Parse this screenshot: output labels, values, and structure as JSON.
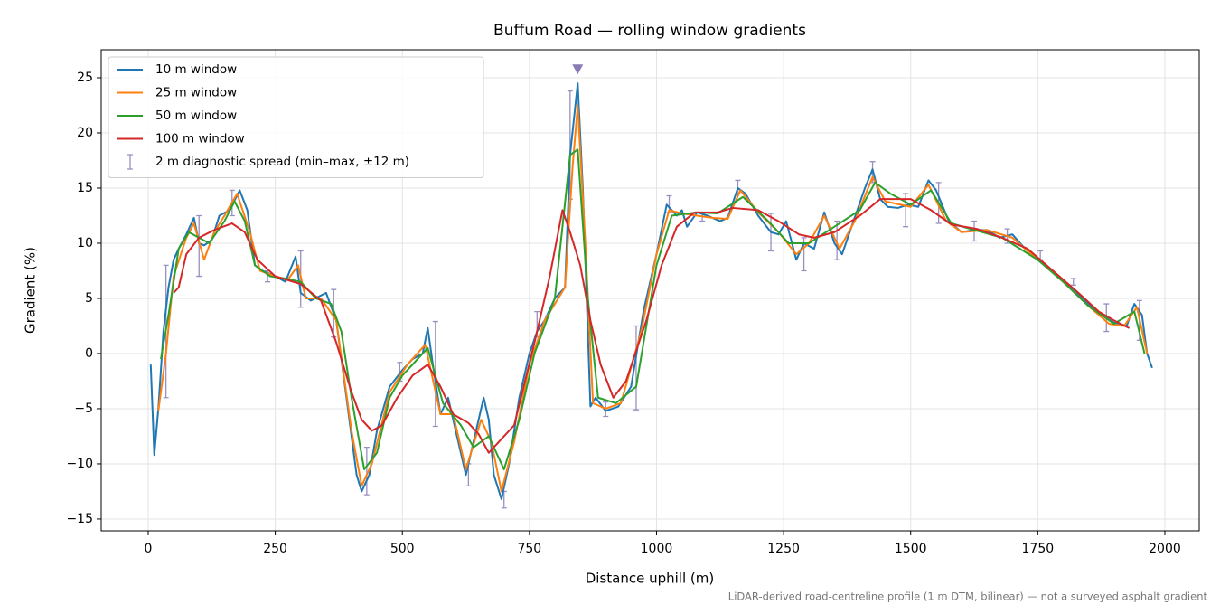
{
  "chart_data": {
    "type": "line",
    "title": "Buffum Road — rolling window gradients",
    "x_label": "Distance uphill (m)",
    "y_label": "Gradient (%)",
    "footnote": "LiDAR-derived road-centreline profile (1 m DTM, bilinear) — not a surveyed asphalt gradient",
    "xlim": [
      -92.4,
      2067.6
    ],
    "ylim": [
      -16.07,
      27.54
    ],
    "xticks": [
      0,
      250,
      500,
      750,
      1000,
      1250,
      1500,
      1750,
      2000
    ],
    "yticks": [
      {
        "value": -15,
        "label": "−15"
      },
      {
        "value": -10,
        "label": "−10"
      },
      {
        "value": -5,
        "label": "−5"
      },
      0,
      5,
      10,
      15,
      20,
      25
    ],
    "grid": true,
    "legend": "upper-left",
    "series": [
      {
        "name": "10 m window",
        "color": "#1f77b4",
        "x": [
          5,
          12,
          20,
          30,
          40,
          50,
          60,
          75,
          90,
          100,
          110,
          125,
          140,
          160,
          180,
          195,
          210,
          225,
          250,
          270,
          290,
          300,
          320,
          350,
          370,
          390,
          410,
          420,
          435,
          450,
          475,
          500,
          520,
          540,
          550,
          560,
          575,
          590,
          610,
          625,
          640,
          660,
          670,
          680,
          695,
          710,
          730,
          750,
          765,
          780,
          800,
          820,
          830,
          845,
          855,
          870,
          880,
          900,
          925,
          950,
          975,
          1000,
          1020,
          1040,
          1050,
          1060,
          1080,
          1100,
          1125,
          1140,
          1160,
          1175,
          1200,
          1225,
          1240,
          1255,
          1275,
          1290,
          1310,
          1330,
          1350,
          1365,
          1380,
          1410,
          1425,
          1440,
          1455,
          1475,
          1495,
          1515,
          1535,
          1550,
          1575,
          1600,
          1625,
          1650,
          1675,
          1700,
          1725,
          1750,
          1775,
          1800,
          1825,
          1850,
          1875,
          1900,
          1925,
          1940,
          1955,
          1965,
          1975
        ],
        "y": [
          -1,
          -9.2,
          -5,
          2,
          6,
          8.5,
          9.5,
          10.8,
          12.3,
          10,
          9.8,
          10.3,
          12.5,
          13,
          14.8,
          13,
          8,
          7.5,
          7,
          6.5,
          8.8,
          5.5,
          4.8,
          5.5,
          3,
          -4,
          -11,
          -12.5,
          -11,
          -7,
          -3,
          -1.5,
          -0.5,
          0,
          2.3,
          -1,
          -5.5,
          -4,
          -8,
          -11,
          -8,
          -4,
          -6,
          -11,
          -13.2,
          -10,
          -4,
          0,
          2,
          3,
          5,
          6,
          18,
          24.5,
          15,
          -4.8,
          -4,
          -5.2,
          -4.8,
          -3,
          4,
          9,
          13.5,
          12.5,
          13,
          11.5,
          12.8,
          12.5,
          12,
          12.3,
          15,
          14.5,
          12.5,
          11,
          10.8,
          12,
          8.5,
          10,
          9.5,
          12.8,
          10,
          9,
          11,
          15,
          16.7,
          14,
          13.3,
          13.2,
          13.5,
          13.3,
          15.7,
          14.8,
          12,
          11,
          11.2,
          11.2,
          10.5,
          10.8,
          9.5,
          8.5,
          7.5,
          6.5,
          5.5,
          4.5,
          3.5,
          2.8,
          2.5,
          4.5,
          3.5,
          0,
          -1.3
        ]
      },
      {
        "name": "25 m window",
        "color": "#ff7f0e",
        "x": [
          20,
          35,
          50,
          75,
          90,
          110,
          130,
          150,
          175,
          200,
          220,
          250,
          275,
          295,
          310,
          340,
          370,
          400,
          420,
          440,
          475,
          510,
          545,
          575,
          600,
          625,
          655,
          675,
          695,
          720,
          750,
          780,
          820,
          835,
          845,
          860,
          875,
          900,
          930,
          970,
          1000,
          1025,
          1050,
          1080,
          1110,
          1140,
          1165,
          1200,
          1240,
          1275,
          1300,
          1330,
          1360,
          1390,
          1425,
          1450,
          1500,
          1535,
          1570,
          1600,
          1650,
          1700,
          1750,
          1800,
          1850,
          1890,
          1920,
          1945,
          1965
        ],
        "y": [
          -5.2,
          0,
          7,
          10.5,
          11.8,
          8.5,
          11,
          12.5,
          14.5,
          11,
          7.5,
          7,
          6.7,
          8,
          5,
          5,
          3,
          -7,
          -12,
          -10,
          -3.5,
          -1,
          0.8,
          -5.5,
          -5.5,
          -10.5,
          -6,
          -8,
          -12.5,
          -8,
          -1,
          3,
          6,
          17,
          22.5,
          10,
          -4.5,
          -5,
          -4.5,
          2,
          9,
          13,
          12.7,
          12.5,
          12.3,
          12.2,
          14.8,
          12.8,
          11,
          9,
          10,
          12.5,
          9.5,
          12,
          16,
          13.8,
          13.3,
          15.3,
          12,
          11,
          11.2,
          10.5,
          8.5,
          6.5,
          4.3,
          2.7,
          2.5,
          4.2,
          0
        ]
      },
      {
        "name": "50 m window",
        "color": "#2ca02c",
        "x": [
          25,
          40,
          60,
          80,
          100,
          120,
          150,
          170,
          190,
          210,
          240,
          270,
          300,
          330,
          360,
          380,
          400,
          425,
          450,
          475,
          500,
          530,
          550,
          580,
          615,
          640,
          670,
          700,
          730,
          760,
          800,
          830,
          845,
          865,
          885,
          920,
          960,
          1000,
          1030,
          1080,
          1120,
          1170,
          1220,
          1260,
          1300,
          1350,
          1400,
          1430,
          1460,
          1500,
          1540,
          1580,
          1625,
          1680,
          1750,
          1800,
          1850,
          1900,
          1940,
          1960
        ],
        "y": [
          -0.5,
          3.5,
          9.5,
          11,
          10.5,
          10,
          12,
          13.8,
          12,
          8,
          7,
          6.8,
          6.5,
          5,
          4.5,
          2,
          -4,
          -10.5,
          -9,
          -4,
          -2,
          -0.5,
          0.5,
          -4.5,
          -6.5,
          -8.5,
          -7.5,
          -10.5,
          -6,
          0,
          5,
          18,
          18.5,
          5,
          -4,
          -4.5,
          -3,
          8,
          12.5,
          12.8,
          12.7,
          14.2,
          12,
          10,
          10,
          11.5,
          13,
          15.5,
          14.5,
          13.5,
          14.8,
          11.8,
          11.2,
          10.5,
          8.5,
          6.5,
          4.3,
          2.7,
          3.8,
          0
        ]
      },
      {
        "name": "100 m window",
        "color": "#d62728",
        "x": [
          50,
          60,
          75,
          100,
          130,
          165,
          190,
          215,
          250,
          300,
          340,
          370,
          400,
          420,
          440,
          460,
          490,
          520,
          550,
          575,
          600,
          630,
          650,
          670,
          690,
          720,
          760,
          790,
          815,
          830,
          850,
          870,
          890,
          915,
          940,
          980,
          1010,
          1040,
          1075,
          1120,
          1150,
          1200,
          1240,
          1280,
          1310,
          1350,
          1400,
          1440,
          1500,
          1540,
          1580,
          1630,
          1680,
          1730,
          1780,
          1830,
          1870,
          1900,
          1930
        ],
        "y": [
          5.5,
          6,
          9,
          10.5,
          11.2,
          11.8,
          11,
          8.5,
          7,
          6.3,
          4.8,
          1,
          -3.5,
          -6,
          -7,
          -6.5,
          -4,
          -2,
          -1,
          -3,
          -5.5,
          -6.3,
          -7.3,
          -9,
          -8,
          -6.5,
          1,
          7,
          13,
          11,
          8,
          3,
          -1,
          -4,
          -2.5,
          3,
          8,
          11.5,
          12.8,
          12.8,
          13.2,
          13,
          12,
          10.8,
          10.5,
          11,
          12.5,
          14,
          14,
          13,
          11.7,
          11.3,
          10.5,
          9.5,
          7.5,
          5.5,
          3.8,
          3,
          2.3
        ]
      }
    ],
    "errorbars": {
      "name": "2 m diagnostic spread (min–max, ±12 m)",
      "color": "#9a8fc0",
      "x": [
        35,
        100,
        165,
        235,
        300,
        365,
        430,
        495,
        565,
        630,
        700,
        765,
        830,
        900,
        960,
        1025,
        1090,
        1160,
        1225,
        1290,
        1355,
        1425,
        1490,
        1555,
        1625,
        1690,
        1755,
        1820,
        1885,
        1950
      ],
      "low": [
        -4,
        7,
        12.5,
        6.5,
        4.2,
        1.5,
        -12.8,
        -2.5,
        -6.6,
        -12,
        -14,
        1.5,
        14,
        -5.7,
        -5.1,
        12.8,
        12,
        14.5,
        9.3,
        7.5,
        8.5,
        15.5,
        11.5,
        11.8,
        10.2,
        10,
        8.5,
        6.2,
        2,
        1.2
      ],
      "high": [
        8,
        12.5,
        14.8,
        7.5,
        9.3,
        5.8,
        -8.5,
        -0.8,
        2.9,
        -10,
        -12.5,
        3.8,
        23.8,
        -4.4,
        2.5,
        14.3,
        12.7,
        15.7,
        12.7,
        10.5,
        12,
        17.4,
        14.5,
        15.5,
        12,
        11.3,
        9.3,
        6.8,
        4.5,
        4.8
      ]
    },
    "peak_marker": {
      "x": 845,
      "y": 25.8,
      "color": "#8a7bb5"
    }
  }
}
